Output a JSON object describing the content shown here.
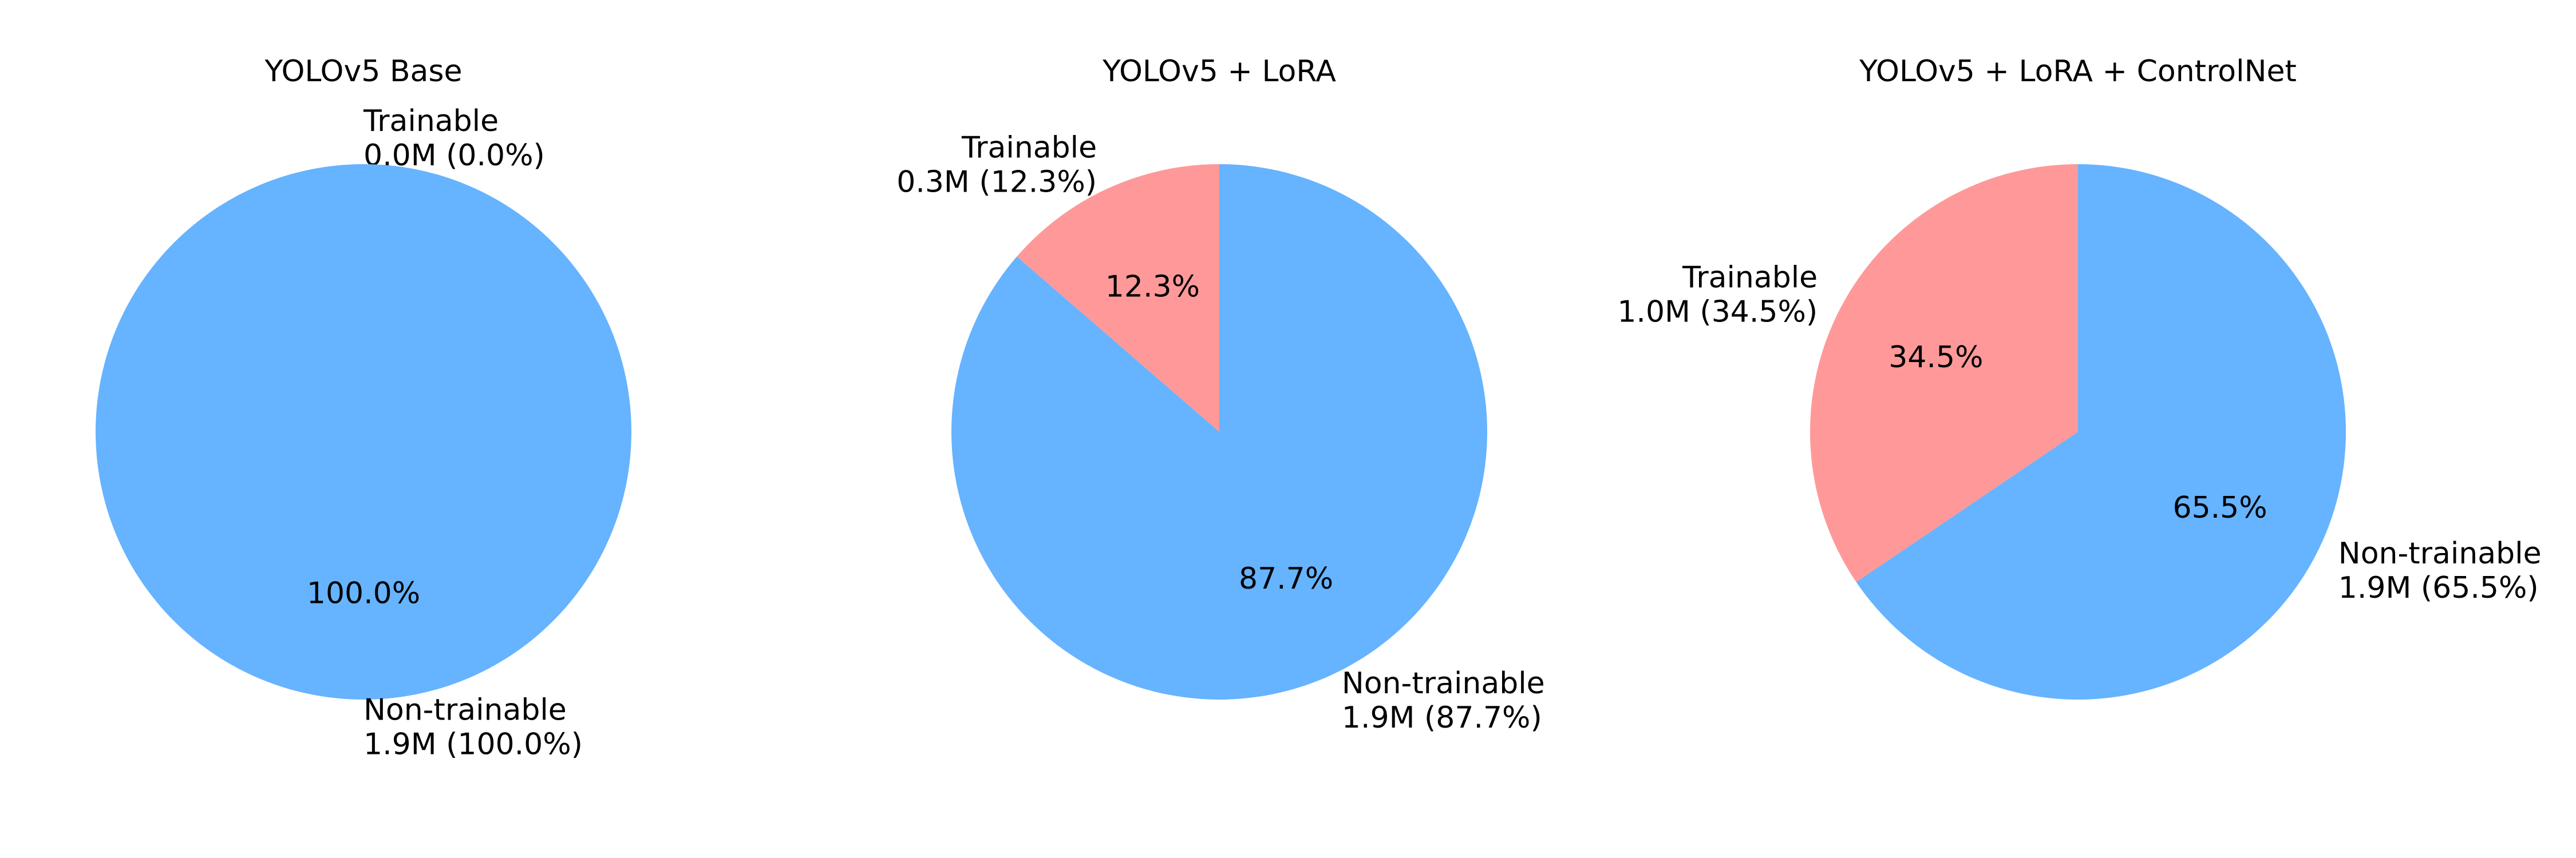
{
  "colors": {
    "trainable": "#ff9999",
    "non_trainable": "#66b3ff",
    "text": "#000000",
    "background": "#ffffff"
  },
  "chart_data": [
    {
      "type": "pie",
      "title": "YOLOv5 Base",
      "start": "top",
      "direction": "clockwise",
      "slices": [
        {
          "category": "Trainable",
          "value": 0.0,
          "value_label": "0.0M (0.0%)",
          "percent_label": "0.0%",
          "color_key": "trainable"
        },
        {
          "category": "Non-trainable",
          "value": 1.9,
          "value_label": "1.9M (100.0%)",
          "percent_label": "100.0%",
          "color_key": "non_trainable"
        }
      ]
    },
    {
      "type": "pie",
      "title": "YOLOv5 + LoRA",
      "start": "top",
      "direction": "counterclockwise",
      "slices": [
        {
          "category": "Trainable",
          "value": 0.3,
          "value_label": "0.3M (12.3%)",
          "percent_label": "12.3%",
          "color_key": "trainable"
        },
        {
          "category": "Non-trainable",
          "value": 1.9,
          "value_label": "1.9M (87.7%)",
          "percent_label": "87.7%",
          "color_key": "non_trainable"
        }
      ]
    },
    {
      "type": "pie",
      "title": "YOLOv5 + LoRA + ControlNet",
      "start": "top",
      "direction": "counterclockwise",
      "slices": [
        {
          "category": "Trainable",
          "value": 1.0,
          "value_label": "1.0M (34.5%)",
          "percent_label": "34.5%",
          "color_key": "trainable"
        },
        {
          "category": "Non-trainable",
          "value": 1.9,
          "value_label": "1.9M (65.5%)",
          "percent_label": "65.5%",
          "color_key": "non_trainable"
        }
      ]
    }
  ]
}
